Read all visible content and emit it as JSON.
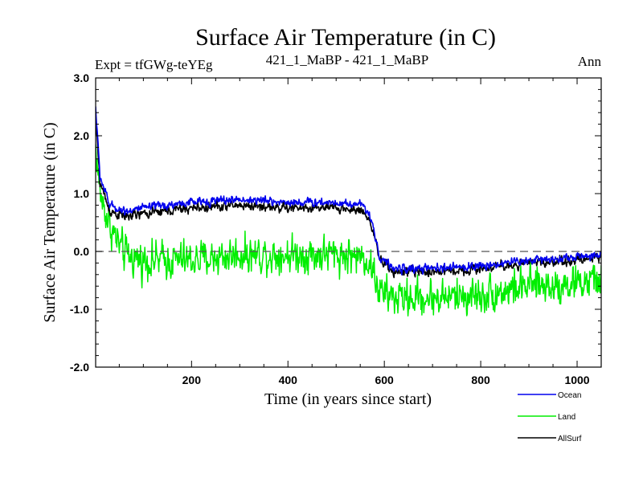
{
  "chart_data": {
    "type": "line",
    "title": "Surface Air Temperature (in C)",
    "subtitle_left": "Expt = tfGWg-teYEg",
    "subtitle_center": "421_1_MaBP - 421_1_MaBP",
    "subtitle_right": "Ann",
    "xlabel": "Time (in years since start)",
    "ylabel": "Surface Air Temperature (in C)",
    "xlim": [
      1,
      1050
    ],
    "ylim": [
      -2.0,
      3.0
    ],
    "x_ticks": [
      200,
      400,
      600,
      800,
      1000
    ],
    "x_tick_labels": [
      "200",
      "400",
      "600",
      "800",
      "1000"
    ],
    "y_ticks": [
      -2.0,
      -1.0,
      0.0,
      1.0,
      2.0,
      3.0
    ],
    "y_tick_labels": [
      "-2.0",
      "-1.0",
      "0.0",
      "1.0",
      "2.0",
      "3.0"
    ],
    "reference_line": 0.0,
    "legend_position": "bottom-right",
    "series": [
      {
        "name": "Land",
        "color": "#00ee00",
        "noise": 0.26,
        "x": [
          1,
          10,
          30,
          60,
          100,
          200,
          300,
          400,
          500,
          560,
          575,
          590,
          620,
          700,
          800,
          900,
          1000,
          1050
        ],
        "values": [
          1.8,
          1.0,
          0.45,
          -0.05,
          -0.15,
          -0.15,
          -0.05,
          -0.05,
          -0.05,
          -0.1,
          -0.3,
          -0.7,
          -0.8,
          -0.8,
          -0.75,
          -0.6,
          -0.55,
          -0.5
        ]
      },
      {
        "name": "AllSurf",
        "color": "#000000",
        "noise": 0.07,
        "x": [
          1,
          10,
          30,
          60,
          100,
          200,
          300,
          400,
          500,
          560,
          575,
          590,
          620,
          700,
          800,
          900,
          1000,
          1050
        ],
        "values": [
          2.3,
          1.2,
          0.7,
          0.6,
          0.65,
          0.75,
          0.8,
          0.75,
          0.75,
          0.7,
          0.4,
          -0.15,
          -0.35,
          -0.35,
          -0.3,
          -0.2,
          -0.15,
          -0.1
        ]
      },
      {
        "name": "Ocean",
        "color": "#0000ee",
        "noise": 0.06,
        "x": [
          1,
          10,
          30,
          60,
          100,
          200,
          300,
          400,
          500,
          560,
          575,
          590,
          620,
          700,
          800,
          900,
          1000,
          1050
        ],
        "values": [
          2.5,
          1.3,
          0.8,
          0.7,
          0.75,
          0.85,
          0.9,
          0.85,
          0.85,
          0.8,
          0.5,
          -0.1,
          -0.3,
          -0.3,
          -0.25,
          -0.15,
          -0.1,
          -0.05
        ]
      }
    ]
  }
}
